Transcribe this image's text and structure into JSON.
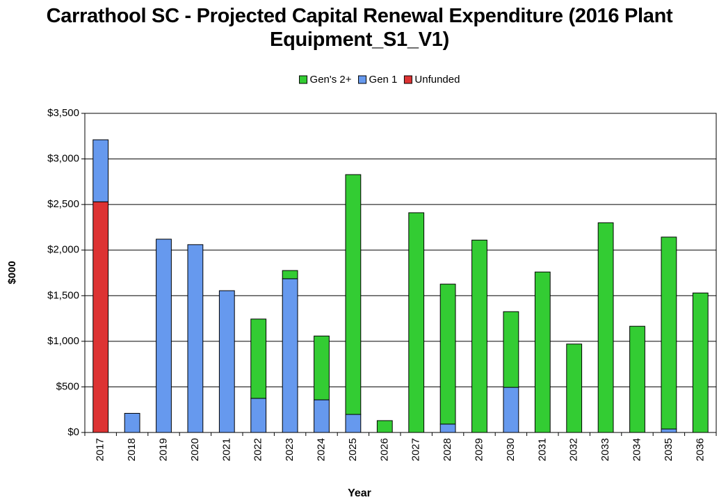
{
  "chart_data": {
    "type": "stacked_bar",
    "title": "Carrathool SC - Projected Capital Renewal Expenditure (2016 Plant Equipment_S1_V1)",
    "x_label": "Year",
    "y_label": "$000",
    "categories": [
      "2017",
      "2018",
      "2019",
      "2020",
      "2021",
      "2022",
      "2023",
      "2024",
      "2025",
      "2026",
      "2027",
      "2028",
      "2029",
      "2030",
      "2031",
      "2032",
      "2033",
      "2034",
      "2035",
      "2036"
    ],
    "series": [
      {
        "name": "Gen's 2+",
        "color": "#33cc33",
        "values": [
          0,
          0,
          0,
          0,
          0,
          870,
          90,
          700,
          2630,
          130,
          2410,
          1535,
          2110,
          830,
          1760,
          970,
          2300,
          1165,
          2105,
          1530
        ]
      },
      {
        "name": "Gen 1",
        "color": "#6699ee",
        "values": [
          680,
          210,
          2120,
          2060,
          1555,
          374,
          1686,
          358,
          198,
          0,
          0,
          92,
          0,
          495,
          0,
          0,
          0,
          0,
          38,
          0
        ]
      },
      {
        "name": "Unfunded",
        "color": "#dd3333",
        "values": [
          2530,
          0,
          0,
          0,
          0,
          0,
          0,
          0,
          0,
          0,
          0,
          0,
          0,
          0,
          0,
          0,
          0,
          0,
          0,
          0
        ]
      }
    ],
    "ylim": [
      0,
      3500
    ],
    "yticks": [
      {
        "value": 0,
        "label": "$0"
      },
      {
        "value": 500,
        "label": "$500"
      },
      {
        "value": 1000,
        "label": "$1,000"
      },
      {
        "value": 1500,
        "label": "$1,500"
      },
      {
        "value": 2000,
        "label": "$2,000"
      },
      {
        "value": 2500,
        "label": "$2,500"
      },
      {
        "value": 3000,
        "label": "$3,000"
      },
      {
        "value": 3500,
        "label": "$3,500"
      }
    ],
    "grid": true,
    "legend": "top"
  }
}
